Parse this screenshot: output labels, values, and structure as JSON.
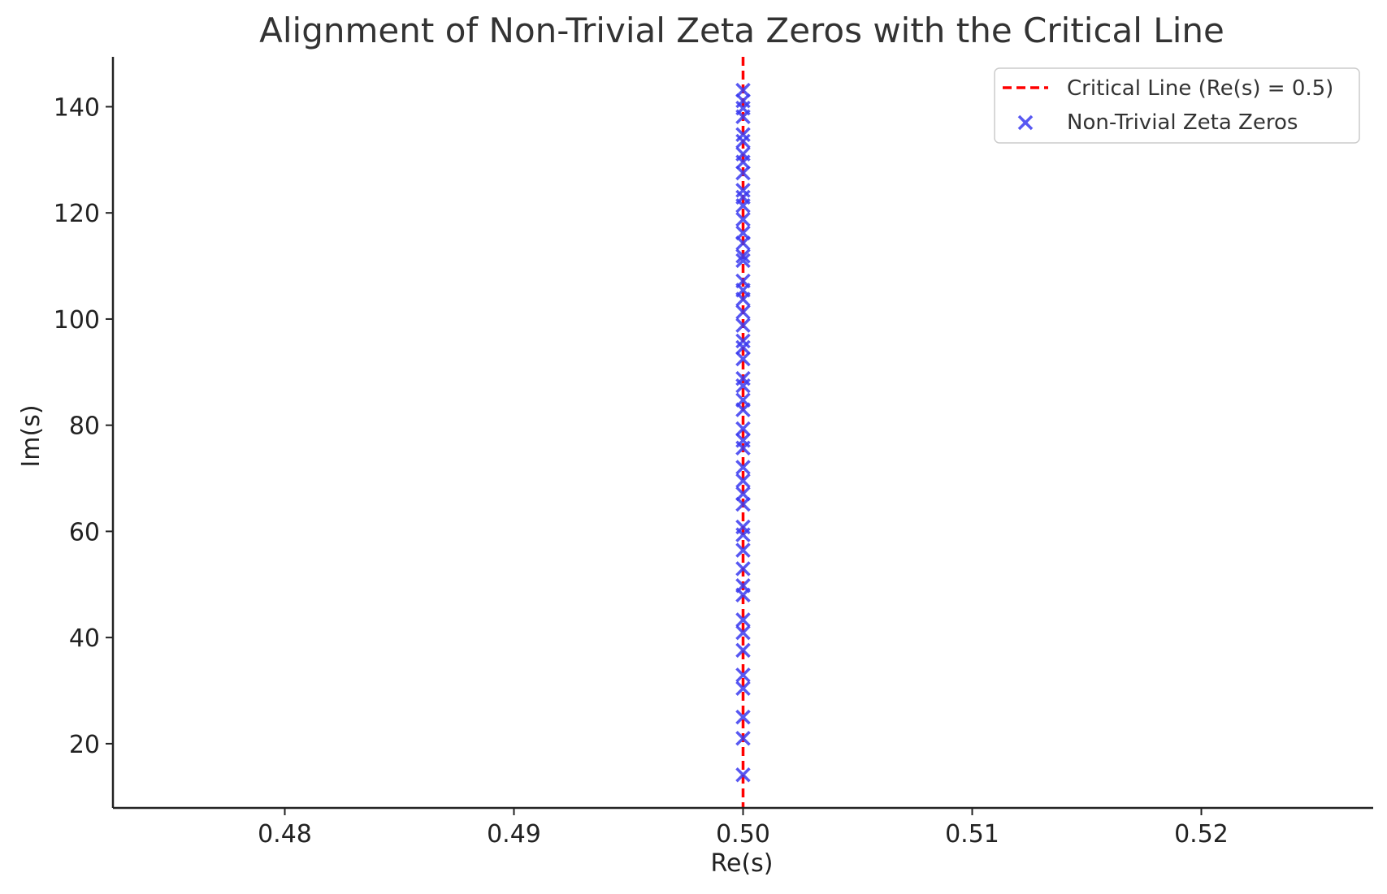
{
  "chart_data": {
    "type": "scatter",
    "title": "Alignment of Non-Trivial Zeta Zeros with the Critical Line",
    "xlabel": "Re(s)",
    "ylabel": "Im(s)",
    "xlim": [
      0.4725,
      0.5275
    ],
    "ylim": [
      7.9,
      149.4
    ],
    "xticks": [
      "0.48",
      "0.49",
      "0.50",
      "0.51",
      "0.52"
    ],
    "xtick_values": [
      0.48,
      0.49,
      0.5,
      0.51,
      0.52
    ],
    "yticks": [
      "20",
      "40",
      "60",
      "80",
      "100",
      "120",
      "140"
    ],
    "ytick_values": [
      20,
      40,
      60,
      80,
      100,
      120,
      140
    ],
    "grid": false,
    "legend_position": "top-right",
    "legend": [
      "Critical Line (Re(s) = 0.5)",
      "Non-Trivial Zeta Zeros"
    ],
    "series": [
      {
        "name": "Critical Line (Re(s) = 0.5)",
        "kind": "vertical-line",
        "x": 0.5,
        "style": "dashed",
        "color": "#ff0000"
      },
      {
        "name": "Non-Trivial Zeta Zeros",
        "kind": "scatter",
        "marker": "x",
        "color": "#3b3bf0",
        "x": [
          0.5,
          0.5,
          0.5,
          0.5,
          0.5,
          0.5,
          0.5,
          0.5,
          0.5,
          0.5,
          0.5,
          0.5,
          0.5,
          0.5,
          0.5,
          0.5,
          0.5,
          0.5,
          0.5,
          0.5,
          0.5,
          0.5,
          0.5,
          0.5,
          0.5,
          0.5,
          0.5,
          0.5,
          0.5,
          0.5,
          0.5,
          0.5,
          0.5,
          0.5,
          0.5,
          0.5,
          0.5,
          0.5,
          0.5,
          0.5,
          0.5,
          0.5,
          0.5,
          0.5,
          0.5,
          0.5,
          0.5,
          0.5,
          0.5,
          0.5
        ],
        "y": [
          14.13,
          21.02,
          25.01,
          30.42,
          32.94,
          37.59,
          40.92,
          43.33,
          48.01,
          49.77,
          52.97,
          56.45,
          59.35,
          60.83,
          65.11,
          67.08,
          69.55,
          72.07,
          75.7,
          77.14,
          79.34,
          82.91,
          84.74,
          87.43,
          88.81,
          92.49,
          94.65,
          95.87,
          98.83,
          101.32,
          103.73,
          105.45,
          107.17,
          111.03,
          111.87,
          114.32,
          116.23,
          118.79,
          121.37,
          122.95,
          124.26,
          127.52,
          129.58,
          131.09,
          133.5,
          134.76,
          138.12,
          139.74,
          141.12,
          143.11
        ]
      }
    ]
  }
}
